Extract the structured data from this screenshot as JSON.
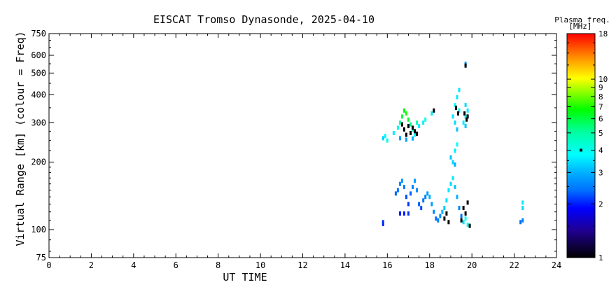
{
  "chart_data": {
    "type": "scatter",
    "title": "EISCAT Tromso Dynasonde, 2025-04-10",
    "xlabel": "UT TIME",
    "ylabel": "Virtual Range [km] (colour = Freq)",
    "xlim": [
      0,
      24
    ],
    "ylim": [
      75,
      750
    ],
    "yscale": "log",
    "x_ticks": [
      0,
      2,
      4,
      6,
      8,
      10,
      12,
      14,
      16,
      18,
      20,
      22,
      24
    ],
    "y_ticks": [
      75,
      100,
      200,
      300,
      400,
      500,
      600,
      750
    ],
    "x_tick_labels": [
      "0",
      "2",
      "4",
      "6",
      "8",
      "10",
      "12",
      "14",
      "16",
      "18",
      "20",
      "22",
      "24"
    ],
    "y_tick_labels": [
      "75",
      "100",
      "200",
      "300",
      "400",
      "500",
      "600",
      "750"
    ],
    "colorbar": {
      "label_line1": "Plasma freq.",
      "label_line2": "[MHz]",
      "scale": "log",
      "range": [
        1,
        18
      ],
      "ticks": [
        1,
        2,
        3,
        4,
        5,
        6,
        7,
        8,
        9,
        10,
        18
      ],
      "tick_labels": [
        "1",
        "2",
        "3",
        "4",
        "5",
        "6",
        "7",
        "8",
        "9",
        "10",
        "18"
      ],
      "marker_value": 4
    },
    "series": [
      {
        "points": [
          [
            15.8,
            106,
            2.0
          ],
          [
            15.8,
            108,
            2.1
          ],
          [
            15.8,
            256,
            3.3
          ],
          [
            15.9,
            262,
            3.8
          ],
          [
            16.0,
            250,
            4.0
          ],
          [
            16.3,
            270,
            3.6
          ],
          [
            16.5,
            285,
            4.2
          ],
          [
            16.6,
            300,
            5.0
          ],
          [
            16.7,
            320,
            6.0
          ],
          [
            16.8,
            340,
            6.5
          ],
          [
            16.9,
            330,
            7.0
          ],
          [
            17.0,
            310,
            6.2
          ],
          [
            17.1,
            295,
            5.2
          ],
          [
            17.2,
            280,
            4.4
          ],
          [
            17.3,
            265,
            3.8
          ],
          [
            17.4,
            300,
            4.8
          ],
          [
            17.5,
            290,
            3.6
          ],
          [
            16.8,
            280,
            1.0
          ],
          [
            16.9,
            265,
            1.0
          ],
          [
            17.0,
            290,
            1.0
          ],
          [
            17.1,
            270,
            1.0
          ],
          [
            17.2,
            285,
            1.0
          ],
          [
            17.3,
            275,
            1.0
          ],
          [
            16.7,
            295,
            1.0
          ],
          [
            17.4,
            268,
            1.0
          ],
          [
            16.6,
            256,
            2.8
          ],
          [
            16.9,
            252,
            2.9
          ],
          [
            17.2,
            255,
            3.0
          ],
          [
            17.7,
            300,
            3.6
          ],
          [
            17.8,
            310,
            4.0
          ],
          [
            18.1,
            330,
            3.6
          ],
          [
            18.2,
            340,
            1.0
          ],
          [
            16.4,
            145,
            2.3
          ],
          [
            16.5,
            150,
            2.4
          ],
          [
            16.6,
            160,
            2.6
          ],
          [
            16.7,
            165,
            2.8
          ],
          [
            16.8,
            155,
            2.5
          ],
          [
            16.9,
            140,
            2.2
          ],
          [
            17.0,
            130,
            2.1
          ],
          [
            17.1,
            145,
            2.3
          ],
          [
            17.2,
            155,
            2.5
          ],
          [
            17.3,
            165,
            2.8
          ],
          [
            17.4,
            150,
            2.6
          ],
          [
            17.5,
            130,
            2.3
          ],
          [
            17.6,
            125,
            2.2
          ],
          [
            17.7,
            135,
            2.4
          ],
          [
            17.8,
            140,
            2.5
          ],
          [
            17.9,
            145,
            2.8
          ],
          [
            18.0,
            140,
            3.0
          ],
          [
            18.1,
            130,
            2.8
          ],
          [
            18.2,
            120,
            2.6
          ],
          [
            18.3,
            112,
            2.4
          ],
          [
            16.6,
            118,
            2.0
          ],
          [
            16.8,
            118,
            2.0
          ],
          [
            17.0,
            118,
            2.1
          ],
          [
            18.4,
            110,
            2.5
          ],
          [
            18.5,
            115,
            2.6
          ],
          [
            18.6,
            120,
            3.0
          ],
          [
            18.7,
            125,
            3.2
          ],
          [
            18.8,
            135,
            3.4
          ],
          [
            18.9,
            150,
            3.5
          ],
          [
            19.0,
            160,
            3.4
          ],
          [
            19.1,
            170,
            3.6
          ],
          [
            19.2,
            155,
            3.2
          ],
          [
            19.3,
            140,
            3.0
          ],
          [
            19.4,
            125,
            2.6
          ],
          [
            19.5,
            115,
            2.4
          ],
          [
            19.6,
            108,
            3.5
          ],
          [
            19.7,
            112,
            3.8
          ],
          [
            19.8,
            105,
            4.0
          ],
          [
            18.7,
            112,
            1.0
          ],
          [
            18.8,
            118,
            1.0
          ],
          [
            18.9,
            108,
            1.0
          ],
          [
            19.5,
            110,
            1.0
          ],
          [
            19.6,
            125,
            1.0
          ],
          [
            19.7,
            118,
            1.0
          ],
          [
            19.8,
            132,
            1.0
          ],
          [
            19.9,
            104,
            1.0
          ],
          [
            19.0,
            210,
            3.2
          ],
          [
            19.1,
            200,
            3.4
          ],
          [
            19.2,
            225,
            3.6
          ],
          [
            19.3,
            240,
            3.8
          ],
          [
            19.2,
            195,
            3.0
          ],
          [
            19.1,
            320,
            3.5
          ],
          [
            19.2,
            360,
            3.8
          ],
          [
            19.3,
            390,
            3.6
          ],
          [
            19.4,
            340,
            4.0
          ],
          [
            19.2,
            300,
            3.4
          ],
          [
            19.3,
            280,
            3.2
          ],
          [
            19.4,
            420,
            3.5
          ],
          [
            19.25,
            350,
            1.0
          ],
          [
            19.35,
            330,
            1.0
          ],
          [
            19.6,
            300,
            3.6
          ],
          [
            19.7,
            320,
            3.8
          ],
          [
            19.8,
            340,
            3.6
          ],
          [
            19.7,
            360,
            3.4
          ],
          [
            19.75,
            310,
            1.0
          ],
          [
            19.65,
            330,
            1.0
          ],
          [
            19.8,
            320,
            1.0
          ],
          [
            19.7,
            290,
            3.2
          ],
          [
            19.7,
            550,
            2.8
          ],
          [
            19.7,
            540,
            1.0
          ],
          [
            22.3,
            108,
            2.4
          ],
          [
            22.4,
            110,
            2.6
          ],
          [
            22.4,
            125,
            3.4
          ],
          [
            22.4,
            132,
            3.6
          ]
        ]
      }
    ]
  }
}
